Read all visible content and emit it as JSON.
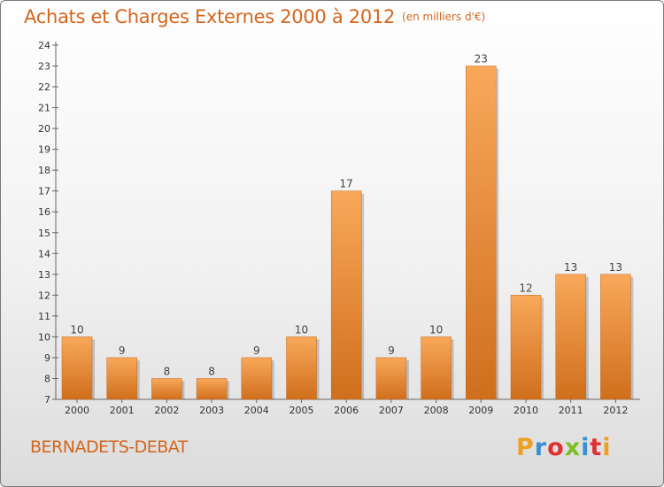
{
  "title": "Achats et Charges Externes 2000 à 2012",
  "unit": "(en milliers d'€)",
  "commune": "BERNADETS-DEBAT",
  "logo": {
    "text": "Proxiti",
    "colors": [
      "#f0a020",
      "#3a8fd0",
      "#e03030",
      "#7cc020",
      "#3a8fd0",
      "#e03030",
      "#f0a020"
    ]
  },
  "colors": {
    "accent": "#d4651c",
    "bar_light": "#f9a85a",
    "bar_dark": "#cf6f1d"
  },
  "chart_data": {
    "type": "bar",
    "categories": [
      "2000",
      "2001",
      "2002",
      "2003",
      "2004",
      "2005",
      "2006",
      "2007",
      "2008",
      "2009",
      "2010",
      "2011",
      "2012"
    ],
    "values": [
      10,
      9,
      8,
      8,
      9,
      10,
      17,
      9,
      10,
      23,
      12,
      13,
      13
    ],
    "ylim": [
      7,
      24
    ],
    "yticks": [
      7,
      8,
      9,
      10,
      11,
      12,
      13,
      14,
      15,
      16,
      17,
      18,
      19,
      20,
      21,
      22,
      23,
      24
    ],
    "grid": false,
    "legend": "none"
  }
}
